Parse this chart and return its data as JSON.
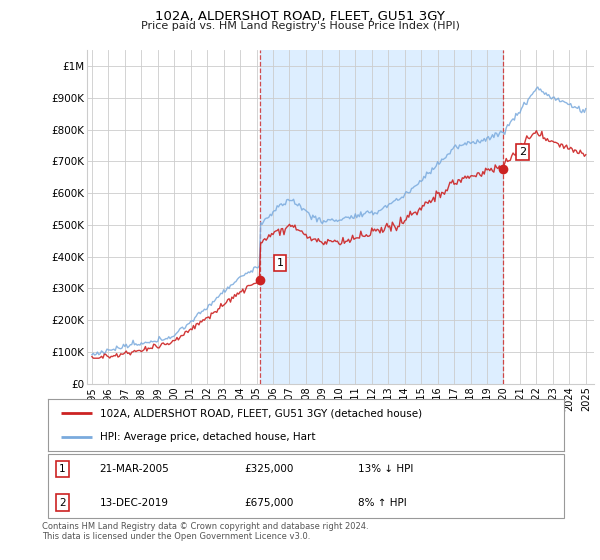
{
  "title": "102A, ALDERSHOT ROAD, FLEET, GU51 3GY",
  "subtitle": "Price paid vs. HM Land Registry's House Price Index (HPI)",
  "yticks": [
    0,
    100000,
    200000,
    300000,
    400000,
    500000,
    600000,
    700000,
    800000,
    900000,
    1000000
  ],
  "ytick_labels": [
    "£0",
    "£100K",
    "£200K",
    "£300K",
    "£400K",
    "£500K",
    "£600K",
    "£700K",
    "£800K",
    "£900K",
    "£1M"
  ],
  "xlim_start": 1994.7,
  "xlim_end": 2025.5,
  "ylim_min": 0,
  "ylim_max": 1050000,
  "hpi_color": "#7aaadd",
  "price_color": "#cc2222",
  "shade_color": "#ddeeff",
  "annotation_box_color": "#cc2222",
  "background_color": "#ffffff",
  "grid_color": "#cccccc",
  "sale1_x": 2005.22,
  "sale1_y": 325000,
  "sale1_label": "1",
  "sale2_x": 2019.95,
  "sale2_y": 675000,
  "sale2_label": "2",
  "footer_text1": "Contains HM Land Registry data © Crown copyright and database right 2024.",
  "footer_text2": "This data is licensed under the Open Government Licence v3.0.",
  "legend_line1": "102A, ALDERSHOT ROAD, FLEET, GU51 3GY (detached house)",
  "legend_line2": "HPI: Average price, detached house, Hart",
  "table_row1": [
    "1",
    "21-MAR-2005",
    "£325,000",
    "13% ↓ HPI"
  ],
  "table_row2": [
    "2",
    "13-DEC-2019",
    "£675,000",
    "8% ↑ HPI"
  ],
  "vline1_x": 2005.22,
  "vline2_x": 2019.95,
  "xtick_years": [
    1995,
    1996,
    1997,
    1998,
    1999,
    2000,
    2001,
    2002,
    2003,
    2004,
    2005,
    2006,
    2007,
    2008,
    2009,
    2010,
    2011,
    2012,
    2013,
    2014,
    2015,
    2016,
    2017,
    2018,
    2019,
    2020,
    2021,
    2022,
    2023,
    2024,
    2025
  ]
}
